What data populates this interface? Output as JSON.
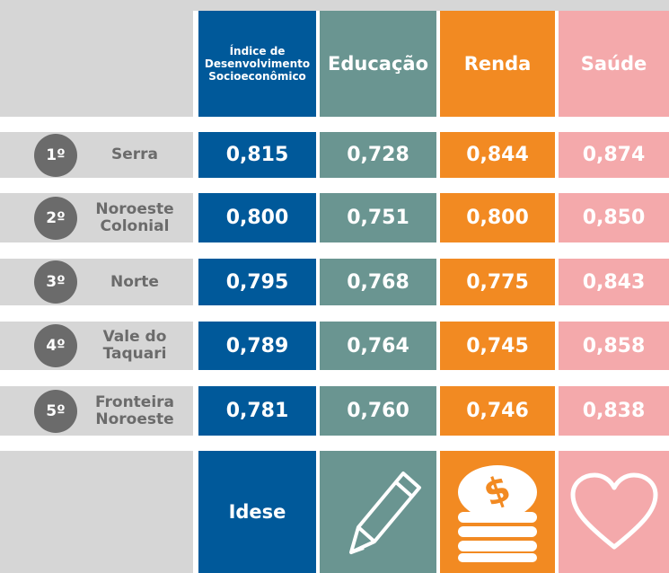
{
  "table": {
    "columns": [
      "Índice de Desenvolvimento Socioeconômico",
      "Educação",
      "Renda",
      "Saúde"
    ],
    "rows": [
      {
        "rank": "1º",
        "region": "Serra",
        "values": [
          "0,815",
          "0,728",
          "0,844",
          "0,874"
        ]
      },
      {
        "rank": "2º",
        "region": "Noroeste Colonial",
        "values": [
          "0,800",
          "0,751",
          "0,800",
          "0,850"
        ]
      },
      {
        "rank": "3º",
        "region": "Norte",
        "values": [
          "0,795",
          "0,768",
          "0,775",
          "0,843"
        ]
      },
      {
        "rank": "4º",
        "region": "Vale do Taquari",
        "values": [
          "0,789",
          "0,764",
          "0,745",
          "0,858"
        ]
      },
      {
        "rank": "5º",
        "region": "Fronteira Noroeste",
        "values": [
          "0,781",
          "0,760",
          "0,746",
          "0,838"
        ]
      }
    ],
    "footer": "Idese"
  }
}
